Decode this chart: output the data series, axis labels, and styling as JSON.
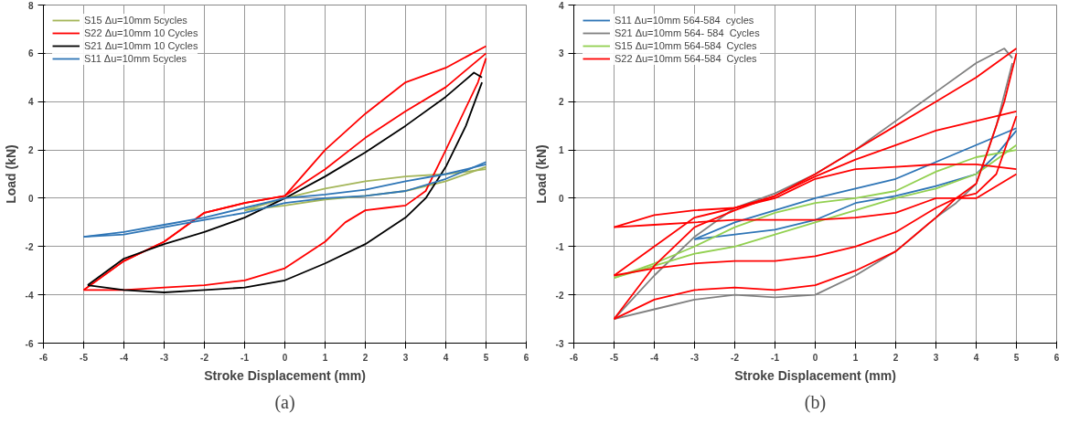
{
  "chart_data": [
    {
      "type": "line",
      "xlabel": "Stroke Displacement (mm)",
      "ylabel": "Load (kN)",
      "annotations": [
        "(a)"
      ],
      "xlim": [
        -6,
        6
      ],
      "ylim": [
        -6,
        8
      ],
      "xticks": [
        -6,
        -5,
        -4,
        -3,
        -2,
        -1,
        0,
        1,
        2,
        3,
        4,
        5,
        6
      ],
      "yticks": [
        -6,
        -4,
        -2,
        0,
        2,
        4,
        6,
        8
      ],
      "grid": true,
      "legend": "top left",
      "line_style": "solid",
      "series": [
        {
          "name": "S15 Δu=10mm 5cycles",
          "color": "#a4b65a",
          "x": [
            -1,
            0,
            1,
            2,
            3,
            4,
            5
          ],
          "values": [
            -0.5,
            -0.3,
            -0.05,
            0.1,
            0.3,
            0.7,
            1.3
          ]
        },
        {
          "color": "#a4b65a",
          "x": [
            -1,
            0,
            1,
            2,
            3,
            4,
            5
          ],
          "values": [
            -0.5,
            0.0,
            0.4,
            0.7,
            0.9,
            1.0,
            1.2
          ]
        },
        {
          "name": "S22 Δu=10mm 10 Cycles",
          "color": "#ff0000",
          "x": [
            -5,
            -4,
            -3,
            -2,
            -1,
            0,
            1,
            2,
            3,
            4,
            5
          ],
          "values": [
            -3.8,
            -2.6,
            -1.8,
            -0.6,
            -0.2,
            0.1,
            1.2,
            2.5,
            3.6,
            4.6,
            6.0
          ]
        },
        {
          "color": "#ff0000",
          "x": [
            -5,
            -4,
            -3,
            -2,
            -1,
            0,
            1,
            2,
            3,
            4,
            5
          ],
          "values": [
            -3.8,
            -2.6,
            -1.8,
            -0.6,
            -0.2,
            0.1,
            2.0,
            3.5,
            4.8,
            5.4,
            6.3
          ]
        },
        {
          "color": "#ff0000",
          "x": [
            -5,
            -4,
            -3,
            -2,
            -1,
            0,
            1,
            1.5,
            2,
            2.5,
            3,
            3.5,
            4,
            4.8,
            5
          ],
          "values": [
            -3.8,
            -3.8,
            -3.7,
            -3.6,
            -3.4,
            -2.9,
            -1.8,
            -1.0,
            -0.5,
            -0.4,
            -0.3,
            0.3,
            2.0,
            4.8,
            5.8
          ]
        },
        {
          "name": "S21 Δu=10mm 10 Cycles",
          "color": "#000000",
          "x": [
            -4.9,
            -4,
            -3,
            -2,
            -1,
            0,
            1,
            2,
            3,
            4,
            4.7,
            4.9
          ],
          "values": [
            -3.6,
            -2.5,
            -1.9,
            -1.4,
            -0.8,
            0.0,
            0.9,
            1.9,
            3.0,
            4.2,
            5.2,
            5.0
          ]
        },
        {
          "color": "#000000",
          "x": [
            -4.9,
            -4,
            -3,
            -2,
            -1,
            0,
            1,
            2,
            3,
            3.5,
            4,
            4.5,
            4.9
          ],
          "values": [
            -3.6,
            -3.8,
            -3.9,
            -3.8,
            -3.7,
            -3.4,
            -2.7,
            -1.9,
            -0.8,
            0.0,
            1.3,
            3.0,
            4.8
          ]
        },
        {
          "name": "S11 Δu=10mm 5cycles",
          "color": "#2e75b6",
          "x": [
            -5,
            -4,
            -3,
            -2,
            -1,
            0,
            1,
            2,
            3,
            4,
            5
          ],
          "values": [
            -1.6,
            -1.5,
            -1.2,
            -0.9,
            -0.6,
            -0.2,
            0.0,
            0.1,
            0.3,
            0.8,
            1.5
          ]
        },
        {
          "color": "#2e75b6",
          "x": [
            -5,
            -4,
            -3,
            -2,
            -1,
            0,
            1,
            2,
            3,
            4,
            5
          ],
          "values": [
            -1.6,
            -1.4,
            -1.1,
            -0.8,
            -0.4,
            0.0,
            0.15,
            0.35,
            0.7,
            1.0,
            1.4
          ]
        }
      ]
    },
    {
      "type": "line",
      "xlabel": "Stroke Displacement (mm)",
      "ylabel": "Load (kN)",
      "annotations": [
        "(b)"
      ],
      "xlim": [
        -6,
        6
      ],
      "ylim": [
        -3,
        4
      ],
      "xticks": [
        -6,
        -5,
        -4,
        -3,
        -2,
        -1,
        0,
        1,
        2,
        3,
        4,
        5,
        6
      ],
      "yticks": [
        -3,
        -2,
        -1,
        0,
        1,
        2,
        3,
        4
      ],
      "grid": true,
      "legend": "top left",
      "line_style": "solid",
      "series": [
        {
          "name": "S11 Δu=10mm 564-584  cycles",
          "color": "#2e75b6",
          "x": [
            -3,
            -2,
            -1,
            0,
            1,
            2,
            3,
            4,
            5
          ],
          "values": [
            -0.85,
            -0.5,
            -0.25,
            0.0,
            0.2,
            0.4,
            0.75,
            1.1,
            1.45
          ]
        },
        {
          "color": "#2e75b6",
          "x": [
            -3,
            -2,
            -1,
            0,
            1,
            2,
            3,
            4,
            4.5,
            5
          ],
          "values": [
            -0.85,
            -0.75,
            -0.65,
            -0.45,
            -0.1,
            0.05,
            0.25,
            0.5,
            0.9,
            1.4
          ]
        },
        {
          "name": "S21 Δu=10mm 564- 584  Cycles",
          "color": "#808080",
          "x": [
            -5,
            -4,
            -3,
            -2,
            -1,
            0,
            1,
            2,
            3,
            4,
            4.7,
            4.9
          ],
          "values": [
            -2.5,
            -1.6,
            -0.8,
            -0.2,
            0.1,
            0.5,
            1.0,
            1.6,
            2.2,
            2.8,
            3.1,
            2.9
          ]
        },
        {
          "color": "#808080",
          "x": [
            -5,
            -4,
            -3,
            -2,
            -1,
            0,
            1,
            2,
            3,
            3.5,
            4,
            4.5,
            4.9
          ],
          "values": [
            -2.5,
            -2.3,
            -2.1,
            -2.0,
            -2.05,
            -2.0,
            -1.6,
            -1.1,
            -0.4,
            -0.1,
            0.3,
            1.5,
            2.8
          ]
        },
        {
          "name": "S15 Δu=10mm 564-584  Cycles",
          "color": "#92d050",
          "x": [
            -5,
            -4,
            -3,
            -2,
            -1,
            0,
            1,
            2,
            3,
            4,
            5
          ],
          "values": [
            -1.65,
            -1.4,
            -1.15,
            -1.0,
            -0.75,
            -0.5,
            -0.25,
            0.0,
            0.2,
            0.5,
            1.1
          ]
        },
        {
          "color": "#92d050",
          "x": [
            -5,
            -4,
            -3,
            -2,
            -1,
            0,
            1,
            2,
            3,
            4,
            5
          ],
          "values": [
            -1.65,
            -1.35,
            -1.0,
            -0.6,
            -0.3,
            -0.1,
            0.0,
            0.15,
            0.55,
            0.85,
            1.0
          ]
        },
        {
          "name": "S22 Δu=10mm 564-584  Cycles",
          "color": "#ff0000",
          "x": [
            -5,
            -4,
            -3,
            -2,
            -1,
            0,
            1,
            2,
            3,
            4,
            5
          ],
          "values": [
            -2.5,
            -1.4,
            -0.6,
            -0.25,
            0.05,
            0.5,
            1.0,
            1.5,
            2.0,
            2.5,
            3.1
          ]
        },
        {
          "color": "#ff0000",
          "x": [
            -5,
            -4,
            -3,
            -2,
            -1,
            0,
            1,
            2,
            3,
            3.5,
            4,
            4.3,
            4.7,
            5
          ],
          "values": [
            -2.5,
            -2.1,
            -1.9,
            -1.85,
            -1.9,
            -1.8,
            -1.5,
            -1.1,
            -0.4,
            0.0,
            0.3,
            1.0,
            2.0,
            3.0
          ]
        },
        {
          "color": "#ff0000",
          "x": [
            -5,
            -4,
            -3,
            -2,
            -1,
            0,
            1,
            2,
            3,
            4,
            5
          ],
          "values": [
            -1.6,
            -1.0,
            -0.4,
            -0.2,
            0.05,
            0.45,
            0.8,
            1.1,
            1.4,
            1.6,
            1.8
          ]
        },
        {
          "color": "#ff0000",
          "x": [
            -5,
            -4,
            -3,
            -2,
            -1,
            0,
            1,
            2,
            3,
            3.5,
            4,
            4.5,
            5
          ],
          "values": [
            -1.6,
            -1.45,
            -1.35,
            -1.3,
            -1.3,
            -1.2,
            -1.0,
            -0.7,
            -0.2,
            0.0,
            0.1,
            0.5,
            1.7
          ]
        },
        {
          "color": "#ff0000",
          "x": [
            -5,
            -4,
            -3,
            -2,
            -1,
            0,
            1,
            2,
            3,
            4,
            5
          ],
          "values": [
            -0.6,
            -0.35,
            -0.25,
            -0.2,
            0.0,
            0.4,
            0.6,
            0.65,
            0.7,
            0.7,
            0.6
          ]
        },
        {
          "color": "#ff0000",
          "x": [
            -5,
            -4,
            -3,
            -2,
            -1,
            0,
            1,
            2,
            3,
            3.5,
            4,
            5
          ],
          "values": [
            -0.6,
            -0.55,
            -0.5,
            -0.45,
            -0.45,
            -0.45,
            -0.4,
            -0.3,
            0.0,
            0.0,
            0.0,
            0.5
          ]
        }
      ]
    }
  ]
}
